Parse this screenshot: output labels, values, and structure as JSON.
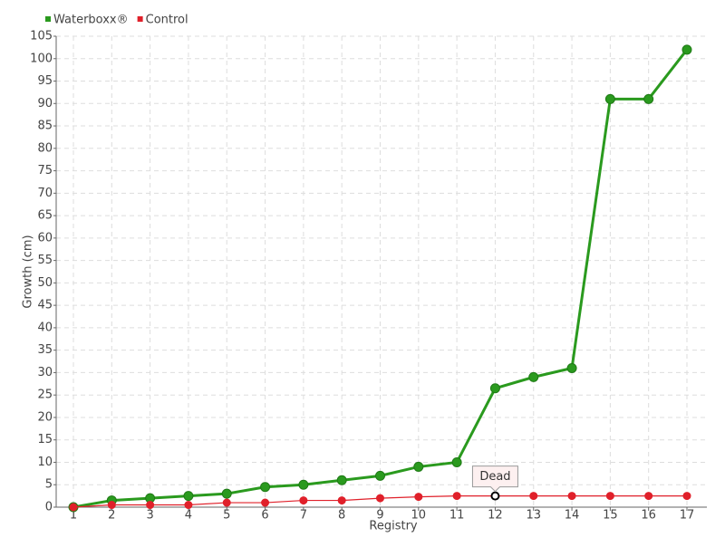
{
  "chart_data": {
    "type": "line",
    "x_label": "Registry",
    "y_label": "Growth (cm)",
    "categories": [
      "1",
      "2",
      "3",
      "4",
      "5",
      "6",
      "7",
      "8",
      "9",
      "10",
      "11",
      "12",
      "13",
      "14",
      "15",
      "16",
      "17"
    ],
    "series": [
      {
        "name": "Waterboxx®",
        "color": "#2a9a1e",
        "values": [
          0,
          1.5,
          2,
          2.5,
          3,
          4.5,
          5,
          6,
          7,
          9,
          10,
          26.5,
          29,
          31,
          91,
          91,
          102
        ]
      },
      {
        "name": "Control",
        "color": "#e0202a",
        "values": [
          0,
          0.5,
          0.5,
          0.5,
          1,
          1,
          1.5,
          1.5,
          2,
          2.3,
          2.5,
          2.5,
          2.5,
          2.5,
          2.5,
          2.5,
          2.5
        ]
      }
    ],
    "annotations": [
      {
        "text": "Dead",
        "x": "12"
      }
    ],
    "ylim": [
      0,
      105
    ],
    "yticks": [
      0,
      5,
      10,
      15,
      20,
      25,
      30,
      35,
      40,
      45,
      50,
      55,
      60,
      65,
      70,
      75,
      80,
      85,
      90,
      95,
      100,
      105
    ],
    "grid": true,
    "legend": "top-left"
  }
}
